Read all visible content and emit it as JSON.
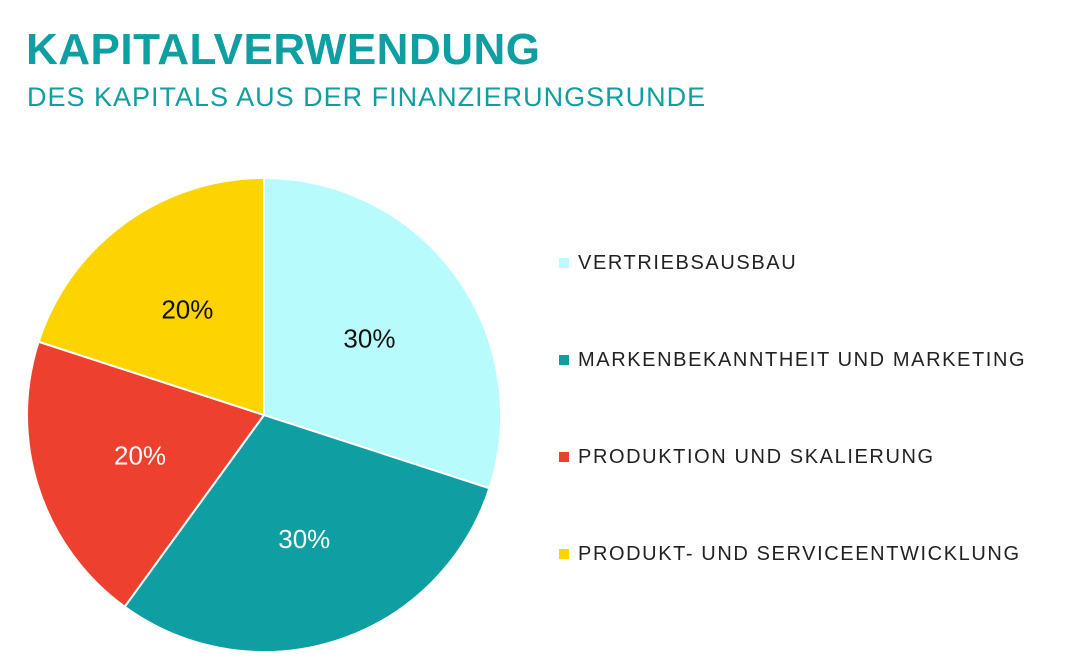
{
  "chart_data": {
    "type": "pie",
    "title": "KAPITALVERWENDUNG",
    "subtitle": "DES KAPITALS AUS DER FINANZIERUNGSRUNDE",
    "legend_position": "right",
    "slices": [
      {
        "name": "VERTRIEBSAUSBAU",
        "value": 30,
        "label": "30%",
        "color": "#b8fbfc",
        "label_color": "#111111"
      },
      {
        "name": "MARKENBEKANNTHEIT UND MARKETING",
        "value": 30,
        "label": "30%",
        "color": "#0f9ea1",
        "label_color": "#ffffff"
      },
      {
        "name": "PRODUKTION UND SKALIERUNG",
        "value": 20,
        "label": "20%",
        "color": "#ee402f",
        "label_color": "#ffffff"
      },
      {
        "name": "PRODUKT- UND SERVICEENTWICKLUNG",
        "value": 20,
        "label": "20%",
        "color": "#fdd300",
        "label_color": "#111111"
      }
    ]
  },
  "colors": {
    "title": "#0f9ea1",
    "background": "#ffffff",
    "slice_border": "#ffffff"
  }
}
